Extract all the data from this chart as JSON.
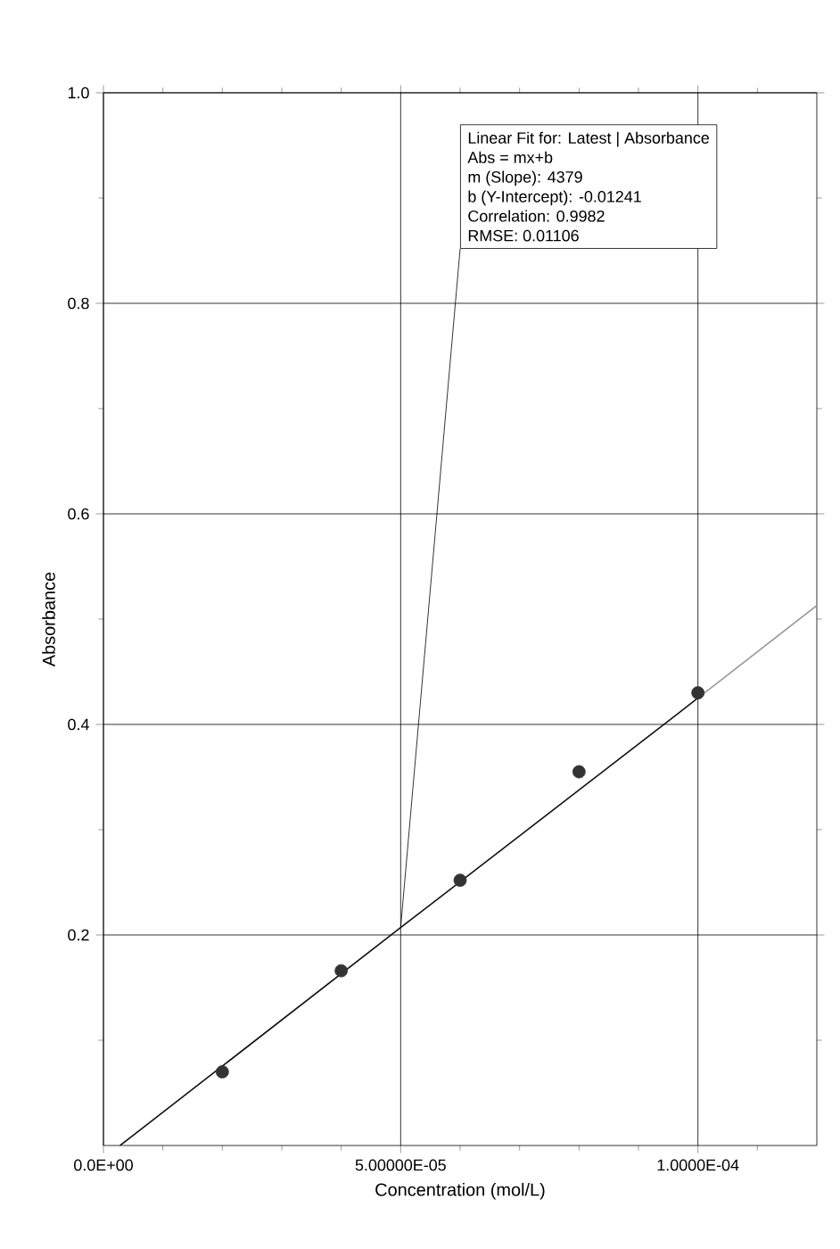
{
  "chart_data": {
    "type": "scatter",
    "xlabel": "Concentration (mol/L)",
    "ylabel": "Absorbance",
    "xlim": [
      0,
      0.00012
    ],
    "ylim": [
      0,
      1.0
    ],
    "xticks": [
      {
        "value": 0,
        "label": "0.0E+00"
      },
      {
        "value": 1e-05,
        "label": null
      },
      {
        "value": 2e-05,
        "label": null
      },
      {
        "value": 3e-05,
        "label": null
      },
      {
        "value": 4e-05,
        "label": null
      },
      {
        "value": 5e-05,
        "label": "5.00000E-05"
      },
      {
        "value": 6e-05,
        "label": null
      },
      {
        "value": 7e-05,
        "label": null
      },
      {
        "value": 8e-05,
        "label": null
      },
      {
        "value": 9e-05,
        "label": null
      },
      {
        "value": 0.0001,
        "label": "1.0000E-04"
      },
      {
        "value": 0.00011,
        "label": null
      }
    ],
    "yticks": [
      {
        "value": 0.1,
        "label": null
      },
      0.2,
      {
        "value": 0.3,
        "label": null
      },
      0.4,
      {
        "value": 0.5,
        "label": null
      },
      0.6,
      {
        "value": 0.7,
        "label": null
      },
      0.8,
      {
        "value": 0.9,
        "label": null
      },
      {
        "value": 1.0,
        "label": "1.0"
      }
    ],
    "grid": true,
    "marker": "circle",
    "series": [
      {
        "color": "#333333",
        "x": [
          2e-05,
          4e-05,
          6e-05,
          8e-05,
          0.0001
        ],
        "values": [
          0.07,
          0.166,
          0.252,
          0.355,
          0.43
        ]
      },
      {
        "type": "line",
        "color": "#111111",
        "marker": "none",
        "x": [
          2.8e-06,
          5e-05,
          0.0001
        ],
        "values": [
          0.0,
          0.207,
          0.425
        ]
      },
      {
        "type": "line",
        "color": "#999999",
        "marker": "none",
        "x": [
          0.0001,
          0.00012
        ],
        "values": [
          0.425,
          0.513
        ]
      }
    ],
    "annotations": [
      "Linear Fit for: Latest | Absorbance",
      "Abs = mx+b",
      "m (Slope): 4379",
      "b (Y-Intercept): -0.01241",
      "Correlation: 0.9982",
      "RMSE: 0.01106"
    ]
  }
}
